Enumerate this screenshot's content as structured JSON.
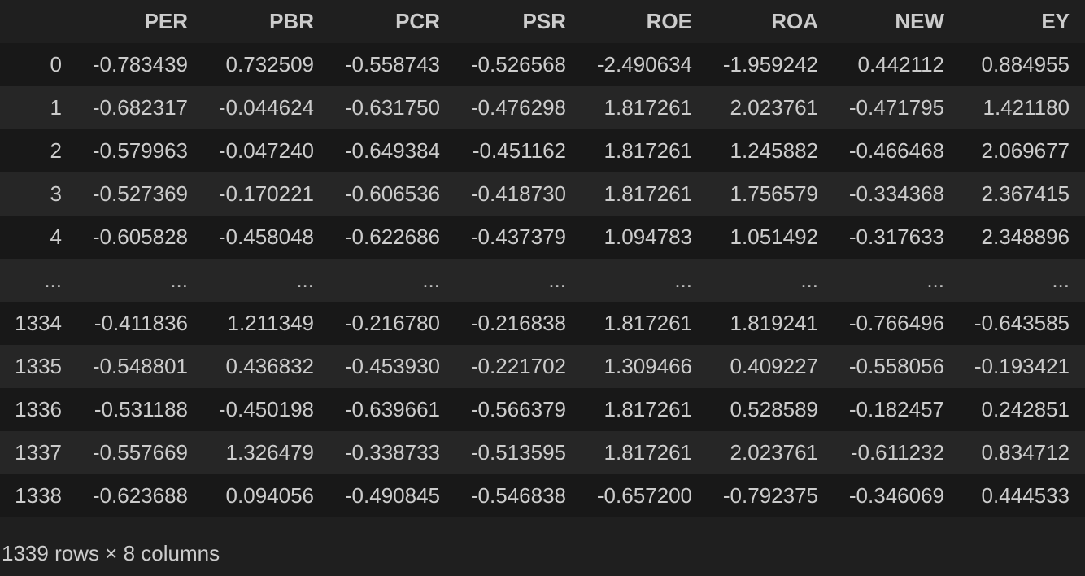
{
  "table": {
    "columns": [
      "",
      "PER",
      "PBR",
      "PCR",
      "PSR",
      "ROE",
      "ROA",
      "NEW",
      "EY"
    ],
    "rows": [
      [
        "0",
        "-0.783439",
        "0.732509",
        "-0.558743",
        "-0.526568",
        "-2.490634",
        "-1.959242",
        "0.442112",
        "0.884955"
      ],
      [
        "1",
        "-0.682317",
        "-0.044624",
        "-0.631750",
        "-0.476298",
        "1.817261",
        "2.023761",
        "-0.471795",
        "1.421180"
      ],
      [
        "2",
        "-0.579963",
        "-0.047240",
        "-0.649384",
        "-0.451162",
        "1.817261",
        "1.245882",
        "-0.466468",
        "2.069677"
      ],
      [
        "3",
        "-0.527369",
        "-0.170221",
        "-0.606536",
        "-0.418730",
        "1.817261",
        "1.756579",
        "-0.334368",
        "2.367415"
      ],
      [
        "4",
        "-0.605828",
        "-0.458048",
        "-0.622686",
        "-0.437379",
        "1.094783",
        "1.051492",
        "-0.317633",
        "2.348896"
      ],
      [
        "...",
        "...",
        "...",
        "...",
        "...",
        "...",
        "...",
        "...",
        "..."
      ],
      [
        "1334",
        "-0.411836",
        "1.211349",
        "-0.216780",
        "-0.216838",
        "1.817261",
        "1.819241",
        "-0.766496",
        "-0.643585"
      ],
      [
        "1335",
        "-0.548801",
        "0.436832",
        "-0.453930",
        "-0.221702",
        "1.309466",
        "0.409227",
        "-0.558056",
        "-0.193421"
      ],
      [
        "1336",
        "-0.531188",
        "-0.450198",
        "-0.639661",
        "-0.566379",
        "1.817261",
        "0.528589",
        "-0.182457",
        "0.242851"
      ],
      [
        "1337",
        "-0.557669",
        "1.326479",
        "-0.338733",
        "-0.513595",
        "1.817261",
        "2.023761",
        "-0.611232",
        "0.834712"
      ],
      [
        "1338",
        "-0.623688",
        "0.094056",
        "-0.490845",
        "-0.546838",
        "-0.657200",
        "-0.792375",
        "-0.346069",
        "0.444533"
      ]
    ]
  },
  "shape_text": "1339 rows × 8 columns"
}
